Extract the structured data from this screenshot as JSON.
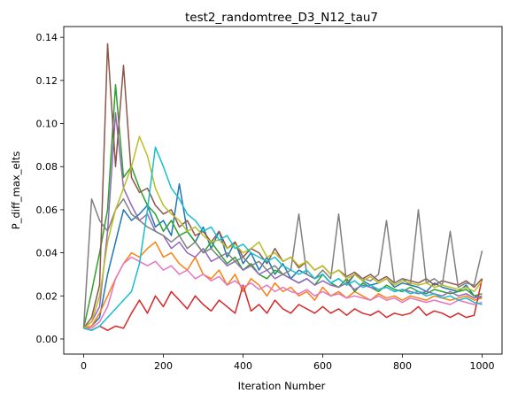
{
  "chart_data": {
    "type": "line",
    "title": "test2_randomtree_D3_N12_tau7",
    "xlabel": "Iteration Number",
    "ylabel": "P_diff_max_elts",
    "xlim": [
      -50,
      1050
    ],
    "ylim": [
      -0.007,
      0.145
    ],
    "xticks": [
      0,
      200,
      400,
      600,
      800,
      1000
    ],
    "xtick_labels": [
      "0",
      "200",
      "400",
      "600",
      "800",
      "1000"
    ],
    "yticks": [
      0.0,
      0.02,
      0.04,
      0.06,
      0.08,
      0.1,
      0.12,
      0.14
    ],
    "ytick_labels": [
      "0.00",
      "0.02",
      "0.04",
      "0.06",
      "0.08",
      "0.10",
      "0.12",
      "0.14"
    ],
    "grid": false,
    "legend": "none",
    "x": [
      0,
      20,
      40,
      60,
      80,
      100,
      120,
      140,
      160,
      180,
      200,
      220,
      240,
      260,
      280,
      300,
      320,
      340,
      360,
      380,
      400,
      420,
      440,
      460,
      480,
      500,
      520,
      540,
      560,
      580,
      600,
      620,
      640,
      660,
      680,
      700,
      720,
      740,
      760,
      780,
      800,
      820,
      840,
      860,
      880,
      900,
      920,
      940,
      960,
      980,
      1000
    ],
    "series": [
      {
        "color": "#1f77b4",
        "values": [
          0.005,
          0.006,
          0.01,
          0.03,
          0.045,
          0.06,
          0.055,
          0.058,
          0.062,
          0.052,
          0.055,
          0.048,
          0.072,
          0.05,
          0.045,
          0.052,
          0.042,
          0.05,
          0.038,
          0.045,
          0.035,
          0.04,
          0.032,
          0.038,
          0.03,
          0.035,
          0.028,
          0.032,
          0.03,
          0.028,
          0.03,
          0.026,
          0.028,
          0.025,
          0.03,
          0.027,
          0.025,
          0.026,
          0.028,
          0.024,
          0.026,
          0.025,
          0.024,
          0.022,
          0.026,
          0.024,
          0.023,
          0.022,
          0.025,
          0.02,
          0.019
        ]
      },
      {
        "color": "#ff7f0e",
        "values": [
          0.005,
          0.006,
          0.012,
          0.02,
          0.028,
          0.035,
          0.04,
          0.038,
          0.042,
          0.045,
          0.038,
          0.04,
          0.035,
          0.032,
          0.038,
          0.03,
          0.028,
          0.032,
          0.025,
          0.03,
          0.022,
          0.028,
          0.025,
          0.02,
          0.026,
          0.022,
          0.024,
          0.02,
          0.022,
          0.018,
          0.024,
          0.02,
          0.022,
          0.019,
          0.022,
          0.02,
          0.018,
          0.021,
          0.019,
          0.02,
          0.018,
          0.02,
          0.019,
          0.018,
          0.02,
          0.019,
          0.018,
          0.019,
          0.02,
          0.018,
          0.019
        ]
      },
      {
        "color": "#2ca02c",
        "values": [
          0.005,
          0.022,
          0.04,
          0.06,
          0.118,
          0.075,
          0.08,
          0.07,
          0.062,
          0.058,
          0.05,
          0.055,
          0.048,
          0.05,
          0.045,
          0.04,
          0.045,
          0.04,
          0.035,
          0.038,
          0.032,
          0.035,
          0.03,
          0.028,
          0.032,
          0.03,
          0.028,
          0.026,
          0.028,
          0.025,
          0.03,
          0.026,
          0.024,
          0.028,
          0.022,
          0.026,
          0.024,
          0.022,
          0.025,
          0.023,
          0.022,
          0.024,
          0.022,
          0.021,
          0.023,
          0.022,
          0.021,
          0.022,
          0.023,
          0.02,
          0.021
        ]
      },
      {
        "color": "#d62728",
        "values": [
          0.005,
          0.004,
          0.006,
          0.004,
          0.006,
          0.005,
          0.012,
          0.018,
          0.012,
          0.02,
          0.015,
          0.022,
          0.018,
          0.014,
          0.02,
          0.016,
          0.013,
          0.018,
          0.015,
          0.012,
          0.025,
          0.013,
          0.016,
          0.012,
          0.018,
          0.014,
          0.012,
          0.016,
          0.014,
          0.012,
          0.015,
          0.012,
          0.014,
          0.011,
          0.014,
          0.012,
          0.011,
          0.013,
          0.01,
          0.012,
          0.011,
          0.012,
          0.015,
          0.011,
          0.013,
          0.012,
          0.01,
          0.012,
          0.01,
          0.011,
          0.028
        ]
      },
      {
        "color": "#9467bd",
        "values": [
          0.005,
          0.008,
          0.015,
          0.05,
          0.105,
          0.07,
          0.062,
          0.055,
          0.058,
          0.05,
          0.048,
          0.042,
          0.045,
          0.04,
          0.038,
          0.042,
          0.036,
          0.038,
          0.034,
          0.036,
          0.032,
          0.034,
          0.03,
          0.032,
          0.028,
          0.03,
          0.028,
          0.026,
          0.028,
          0.025,
          0.027,
          0.025,
          0.024,
          0.026,
          0.023,
          0.025,
          0.024,
          0.023,
          0.024,
          0.022,
          0.023,
          0.022,
          0.021,
          0.022,
          0.021,
          0.02,
          0.022,
          0.02,
          0.021,
          0.019,
          0.02
        ]
      },
      {
        "color": "#8c564b",
        "values": [
          0.005,
          0.01,
          0.025,
          0.137,
          0.08,
          0.127,
          0.075,
          0.068,
          0.07,
          0.062,
          0.058,
          0.06,
          0.052,
          0.055,
          0.048,
          0.05,
          0.045,
          0.05,
          0.042,
          0.045,
          0.038,
          0.042,
          0.04,
          0.035,
          0.042,
          0.036,
          0.038,
          0.033,
          0.036,
          0.032,
          0.034,
          0.03,
          0.032,
          0.029,
          0.031,
          0.028,
          0.03,
          0.027,
          0.029,
          0.026,
          0.028,
          0.027,
          0.026,
          0.028,
          0.025,
          0.027,
          0.026,
          0.025,
          0.027,
          0.024,
          0.028
        ]
      },
      {
        "color": "#e377c2",
        "values": [
          0.005,
          0.005,
          0.008,
          0.015,
          0.028,
          0.035,
          0.038,
          0.036,
          0.034,
          0.036,
          0.032,
          0.034,
          0.03,
          0.032,
          0.028,
          0.03,
          0.027,
          0.029,
          0.025,
          0.027,
          0.024,
          0.026,
          0.023,
          0.025,
          0.022,
          0.024,
          0.022,
          0.021,
          0.023,
          0.02,
          0.022,
          0.02,
          0.021,
          0.019,
          0.02,
          0.019,
          0.018,
          0.02,
          0.018,
          0.019,
          0.017,
          0.019,
          0.018,
          0.017,
          0.018,
          0.017,
          0.016,
          0.018,
          0.017,
          0.016,
          0.017
        ]
      },
      {
        "color": "#7f7f7f",
        "values": [
          0.005,
          0.065,
          0.055,
          0.05,
          0.06,
          0.065,
          0.058,
          0.055,
          0.052,
          0.05,
          0.048,
          0.045,
          0.048,
          0.042,
          0.045,
          0.04,
          0.042,
          0.038,
          0.04,
          0.036,
          0.038,
          0.034,
          0.036,
          0.032,
          0.034,
          0.03,
          0.032,
          0.058,
          0.03,
          0.028,
          0.032,
          0.028,
          0.058,
          0.026,
          0.03,
          0.028,
          0.027,
          0.03,
          0.055,
          0.026,
          0.028,
          0.025,
          0.06,
          0.026,
          0.028,
          0.025,
          0.05,
          0.024,
          0.026,
          0.025,
          0.041
        ]
      },
      {
        "color": "#bcbd22",
        "values": [
          0.005,
          0.008,
          0.02,
          0.045,
          0.06,
          0.07,
          0.08,
          0.094,
          0.085,
          0.07,
          0.062,
          0.058,
          0.055,
          0.05,
          0.052,
          0.048,
          0.045,
          0.046,
          0.042,
          0.044,
          0.04,
          0.042,
          0.045,
          0.038,
          0.04,
          0.036,
          0.038,
          0.034,
          0.036,
          0.032,
          0.034,
          0.03,
          0.032,
          0.028,
          0.03,
          0.027,
          0.029,
          0.026,
          0.028,
          0.025,
          0.027,
          0.026,
          0.025,
          0.026,
          0.024,
          0.025,
          0.024,
          0.023,
          0.024,
          0.022,
          0.027
        ]
      },
      {
        "color": "#17becf",
        "values": [
          0.005,
          0.004,
          0.006,
          0.01,
          0.014,
          0.018,
          0.022,
          0.035,
          0.06,
          0.089,
          0.08,
          0.07,
          0.065,
          0.058,
          0.055,
          0.05,
          0.052,
          0.046,
          0.048,
          0.042,
          0.044,
          0.04,
          0.038,
          0.036,
          0.038,
          0.034,
          0.032,
          0.03,
          0.032,
          0.028,
          0.03,
          0.026,
          0.028,
          0.025,
          0.027,
          0.024,
          0.025,
          0.023,
          0.024,
          0.022,
          0.023,
          0.021,
          0.022,
          0.02,
          0.021,
          0.019,
          0.02,
          0.018,
          0.019,
          0.017,
          0.016
        ]
      }
    ]
  }
}
